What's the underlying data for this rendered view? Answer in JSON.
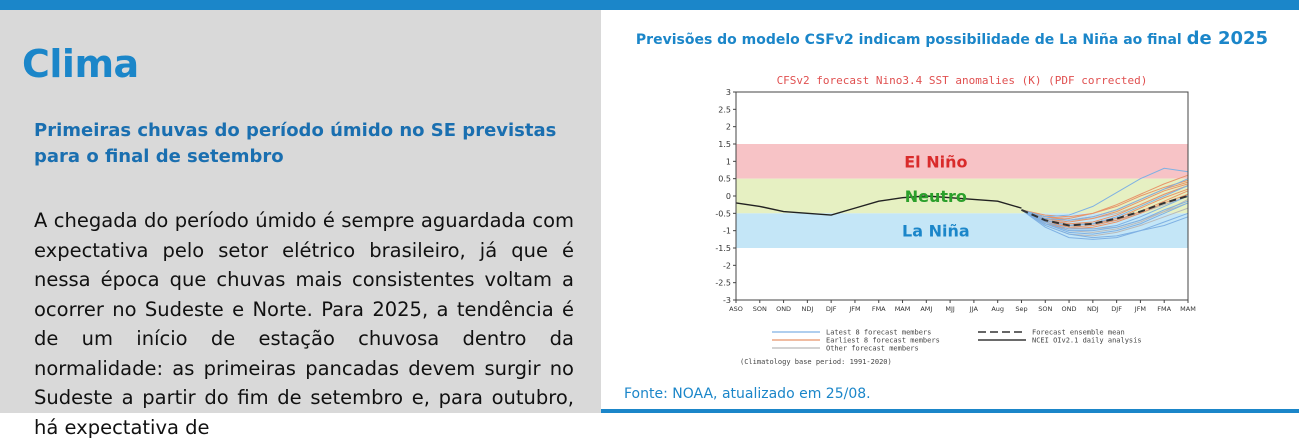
{
  "left": {
    "title": "Clima",
    "subtitle": "Primeiras chuvas do período úmido no SE previstas para o final de setembro",
    "body": "A chegada do período úmido é sempre aguardada com expectativa pelo setor elétrico brasileiro, já que é nessa época que chuvas mais consistentes voltam a ocorrer no Sudeste e Norte. Para 2025, a tendência é de um início de estação chuvosa dentro da normalidade: as primeiras pancadas devem surgir no Sudeste a partir do fim de setembro e, para outubro, há expectativa de"
  },
  "right": {
    "heading": "Previsões do modelo CSFv2 indicam possibilidade de La Niña ao final",
    "heading_big": "de 2025",
    "source": "Fonte: NOAA, atualizado em 25/08."
  },
  "colors": {
    "accent": "#1b86c9",
    "el_nino_band": "#f7c3c6",
    "neutral_band": "#e6f0c2",
    "la_nina_band": "#c4e6f7"
  },
  "chart_data": {
    "type": "line",
    "title": "CFSv2 forecast Nino3.4 SST anomalies (K) (PDF corrected)",
    "x": [
      "ASO",
      "SON",
      "OND",
      "NDJ",
      "DJF",
      "JFM",
      "FMA",
      "MAM",
      "AMJ",
      "MJJ",
      "JJA",
      "Aug",
      "Sep",
      "SON",
      "OND",
      "NDJ",
      "DJF",
      "JFM",
      "FMA",
      "MAM"
    ],
    "ylim": [
      -3,
      3
    ],
    "yticks": [
      "3",
      "2.5",
      "2",
      "1.5",
      "1",
      "0.5",
      "0",
      "-0.5",
      "-1",
      "-1.5",
      "-2",
      "-2.5",
      "-3"
    ],
    "bands": [
      {
        "label": "El Niño",
        "from": 0.5,
        "to": 1.5,
        "color": "#f7c3c6",
        "text_color": "#d92b2b"
      },
      {
        "label": "Neutro",
        "from": -0.5,
        "to": 0.5,
        "color": "#e6f0c2",
        "text_color": "#2ca02c"
      },
      {
        "label": "La Niña",
        "from": -1.5,
        "to": -0.5,
        "color": "#c4e6f7",
        "text_color": "#1b86c9"
      }
    ],
    "observed": {
      "name": "NCEI OIv2.1 daily analysis",
      "x_index": [
        0,
        1,
        2,
        3,
        4,
        5,
        6,
        7,
        8,
        9,
        10,
        11,
        12
      ],
      "values": [
        -0.2,
        -0.3,
        -0.45,
        -0.5,
        -0.55,
        -0.35,
        -0.15,
        -0.05,
        0.0,
        -0.05,
        -0.1,
        -0.15,
        -0.35
      ]
    },
    "ensemble_mean": {
      "name": "Forecast ensemble mean",
      "x_index": [
        12,
        13,
        14,
        15,
        16,
        17,
        18,
        19
      ],
      "values": [
        -0.4,
        -0.7,
        -0.85,
        -0.8,
        -0.65,
        -0.45,
        -0.2,
        0.0
      ]
    },
    "members": [
      {
        "group": "latest",
        "values": [
          -0.4,
          -0.8,
          -1.05,
          -1.1,
          -1.0,
          -0.8,
          -0.5,
          -0.2
        ]
      },
      {
        "group": "latest",
        "values": [
          -0.4,
          -0.9,
          -1.2,
          -1.25,
          -1.2,
          -1.0,
          -0.75,
          -0.5
        ]
      },
      {
        "group": "latest",
        "values": [
          -0.4,
          -0.75,
          -0.95,
          -0.95,
          -0.85,
          -0.6,
          -0.3,
          0.0
        ]
      },
      {
        "group": "latest",
        "values": [
          -0.4,
          -0.7,
          -0.85,
          -0.8,
          -0.6,
          -0.3,
          0.0,
          0.3
        ]
      },
      {
        "group": "latest",
        "values": [
          -0.4,
          -0.85,
          -1.1,
          -1.2,
          -1.15,
          -1.0,
          -0.85,
          -0.6
        ]
      },
      {
        "group": "latest",
        "values": [
          -0.4,
          -0.65,
          -0.7,
          -0.6,
          -0.4,
          -0.1,
          0.2,
          0.5
        ]
      },
      {
        "group": "latest",
        "values": [
          -0.4,
          -0.8,
          -1.0,
          -1.0,
          -0.9,
          -0.7,
          -0.4,
          -0.15
        ]
      },
      {
        "group": "latest",
        "values": [
          -0.4,
          -0.6,
          -0.55,
          -0.3,
          0.1,
          0.5,
          0.8,
          0.7
        ]
      },
      {
        "group": "earliest",
        "values": [
          -0.4,
          -0.6,
          -0.7,
          -0.6,
          -0.4,
          -0.1,
          0.2,
          0.4
        ]
      },
      {
        "group": "earliest",
        "values": [
          -0.4,
          -0.7,
          -0.8,
          -0.75,
          -0.55,
          -0.25,
          0.05,
          0.3
        ]
      },
      {
        "group": "earliest",
        "values": [
          -0.4,
          -0.55,
          -0.6,
          -0.5,
          -0.25,
          0.05,
          0.35,
          0.6
        ]
      },
      {
        "group": "earliest",
        "values": [
          -0.4,
          -0.75,
          -0.9,
          -0.85,
          -0.7,
          -0.45,
          -0.15,
          0.15
        ]
      },
      {
        "group": "earliest",
        "values": [
          -0.4,
          -0.65,
          -0.75,
          -0.65,
          -0.45,
          -0.15,
          0.15,
          0.35
        ]
      },
      {
        "group": "earliest",
        "values": [
          -0.4,
          -0.6,
          -0.65,
          -0.5,
          -0.3,
          0.0,
          0.25,
          0.45
        ]
      },
      {
        "group": "earliest",
        "values": [
          -0.4,
          -0.7,
          -0.85,
          -0.8,
          -0.65,
          -0.35,
          -0.05,
          0.2
        ]
      },
      {
        "group": "earliest",
        "values": [
          -0.4,
          -0.8,
          -0.95,
          -0.9,
          -0.75,
          -0.5,
          -0.2,
          0.05
        ]
      },
      {
        "group": "other",
        "values": [
          -0.4,
          -0.7,
          -0.9,
          -0.95,
          -0.9,
          -0.7,
          -0.45,
          -0.2
        ]
      },
      {
        "group": "other",
        "values": [
          -0.4,
          -0.75,
          -1.0,
          -1.05,
          -0.95,
          -0.75,
          -0.45,
          -0.1
        ]
      },
      {
        "group": "other",
        "values": [
          -0.4,
          -0.65,
          -0.8,
          -0.8,
          -0.7,
          -0.5,
          -0.25,
          0.0
        ]
      },
      {
        "group": "other",
        "values": [
          -0.4,
          -0.6,
          -0.7,
          -0.65,
          -0.5,
          -0.25,
          0.05,
          0.3
        ]
      },
      {
        "group": "other",
        "values": [
          -0.4,
          -0.85,
          -1.1,
          -1.15,
          -1.05,
          -0.85,
          -0.6,
          -0.35
        ]
      }
    ],
    "member_colors": {
      "latest": "#7fb1e3",
      "earliest": "#e8956a",
      "other": "#b9b9b9"
    },
    "legend": [
      {
        "label": "Latest 8 forecast members",
        "color": "#7fb1e3",
        "style": "solid"
      },
      {
        "label": "Earliest 8 forecast members",
        "color": "#e8956a",
        "style": "solid"
      },
      {
        "label": "Other forecast members",
        "color": "#b9b9b9",
        "style": "solid"
      },
      {
        "label": "Forecast ensemble mean",
        "color": "#333333",
        "style": "dashed"
      },
      {
        "label": "NCEI OIv2.1 daily analysis",
        "color": "#111111",
        "style": "solid"
      }
    ],
    "note": "(Climatology base period: 1991-2020)",
    "grid": false,
    "legend_position": "bottom"
  }
}
